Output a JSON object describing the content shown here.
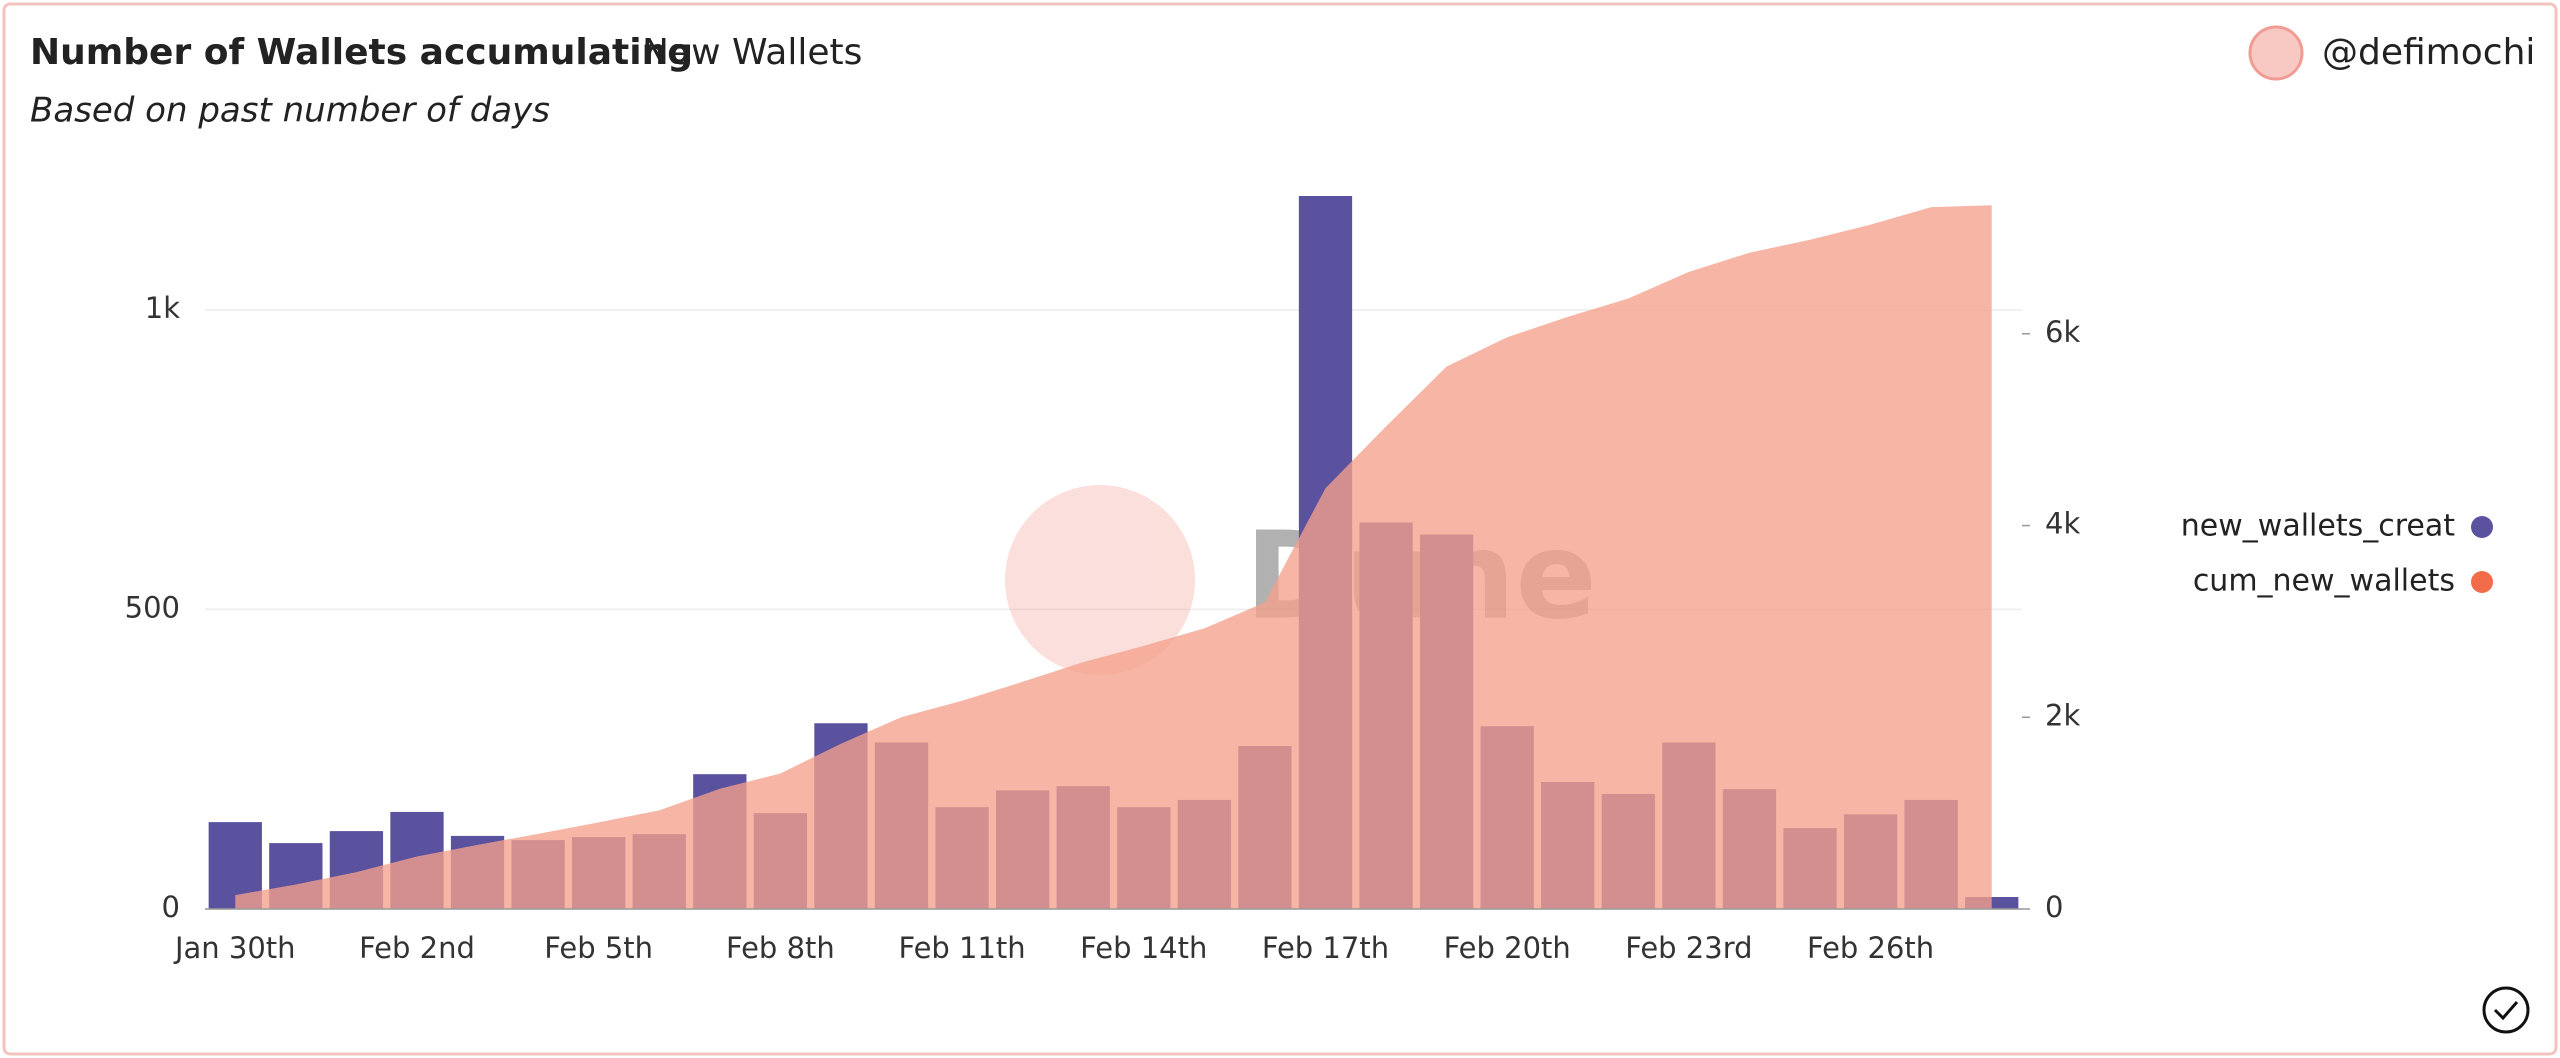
{
  "header": {
    "title": "Number of Wallets accumulating",
    "tab": "New Wallets",
    "subtitle": "Based on past number of days",
    "author": "@defimochi"
  },
  "chart_data": {
    "type": "bar-area",
    "watermark": "Dune",
    "categories": [
      "Jan 30th",
      null,
      null,
      "Feb 2nd",
      null,
      null,
      "Feb 5th",
      null,
      null,
      "Feb 8th",
      null,
      null,
      "Feb 11th",
      null,
      null,
      "Feb 14th",
      null,
      null,
      "Feb 17th",
      null,
      null,
      "Feb 20th",
      null,
      null,
      "Feb 23rd",
      null,
      null,
      "Feb 26th",
      null,
      null
    ],
    "series": [
      {
        "name": "new_wallets_creat",
        "color": "#5a529e",
        "type": "bar",
        "values": [
          145,
          110,
          130,
          162,
          122,
          115,
          120,
          125,
          225,
          160,
          310,
          278,
          170,
          198,
          205,
          170,
          182,
          272,
          1190,
          645,
          625,
          305,
          212,
          192,
          278,
          200,
          135,
          158,
          182,
          20
        ]
      },
      {
        "name": "cum_new_wallets",
        "color": "#f5a08c",
        "type": "area",
        "axis": "y2",
        "values": [
          145,
          255,
          385,
          547,
          669,
          784,
          904,
          1029,
          1254,
          1414,
          1724,
          2002,
          2172,
          2370,
          2575,
          2745,
          2927,
          3199,
          4389,
          5034,
          5659,
          5964,
          6176,
          6368,
          6646,
          6846,
          6981,
          7139,
          7321,
          7341
        ]
      }
    ],
    "ylim": [
      0,
      1200
    ],
    "yticks": [
      0,
      500,
      {
        "value": 1000,
        "label": "1k"
      }
    ],
    "y2lim": [
      0,
      7500
    ],
    "y2ticks": [
      0,
      {
        "value": 2000,
        "label": "2k"
      },
      {
        "value": 4000,
        "label": "4k"
      },
      {
        "value": 6000,
        "label": "6k"
      }
    ],
    "grid": true,
    "legend": "right"
  }
}
